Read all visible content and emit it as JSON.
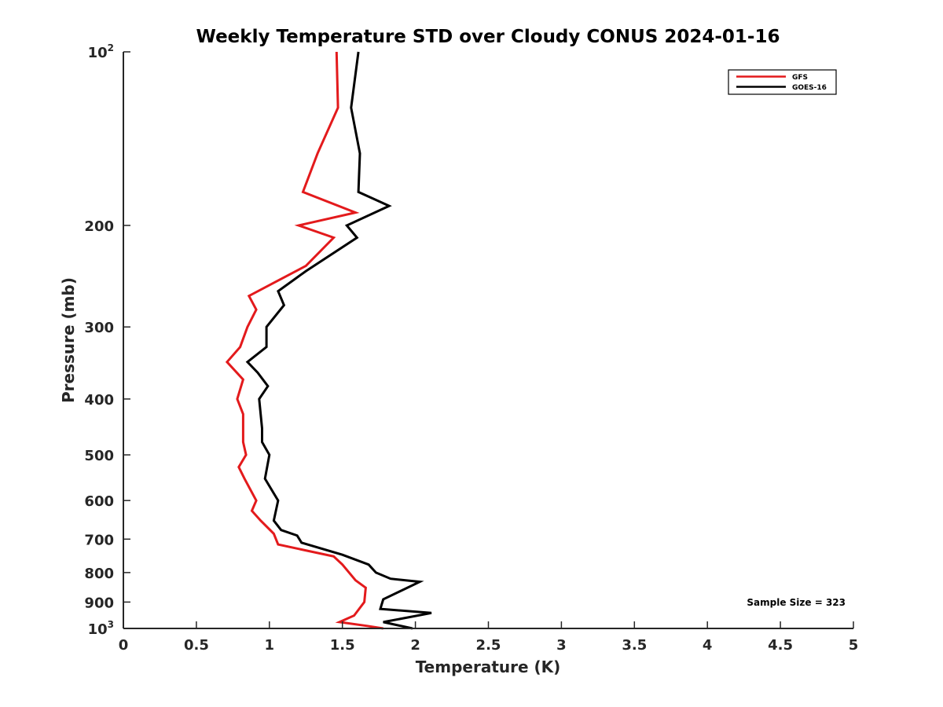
{
  "chart_data": {
    "type": "line",
    "title": "Weekly Temperature STD over Cloudy CONUS 2024-01-16",
    "xlabel": "Temperature (K)",
    "ylabel": "Pressure (mb)",
    "xlim": [
      0,
      5
    ],
    "ylim": [
      100,
      1000
    ],
    "y_scale": "log",
    "y_reversed": true,
    "x_ticks": [
      "0",
      "0.5",
      "1",
      "1.5",
      "2",
      "2.5",
      "3",
      "3.5",
      "4",
      "4.5",
      "5"
    ],
    "y_ticks": [
      {
        "value": 100,
        "base": "10",
        "exp": "2"
      },
      {
        "value": 200,
        "label": "200"
      },
      {
        "value": 300,
        "label": "300"
      },
      {
        "value": 400,
        "label": "400"
      },
      {
        "value": 500,
        "label": "500"
      },
      {
        "value": 600,
        "label": "600"
      },
      {
        "value": 700,
        "label": "700"
      },
      {
        "value": 800,
        "label": "800"
      },
      {
        "value": 900,
        "label": "900"
      },
      {
        "value": 1000,
        "base": "10",
        "exp": "3"
      }
    ],
    "grid": false,
    "legend_position": "top-right",
    "series": [
      {
        "name": "GFS",
        "color": "#e31a1c",
        "points": [
          [
            1.46,
            100
          ],
          [
            1.47,
            125
          ],
          [
            1.33,
            150
          ],
          [
            1.23,
            175
          ],
          [
            1.59,
            190
          ],
          [
            1.2,
            200
          ],
          [
            1.44,
            210
          ],
          [
            1.25,
            235
          ],
          [
            1.05,
            250
          ],
          [
            0.86,
            265
          ],
          [
            0.91,
            280
          ],
          [
            0.85,
            300
          ],
          [
            0.8,
            325
          ],
          [
            0.71,
            345
          ],
          [
            0.82,
            370
          ],
          [
            0.78,
            400
          ],
          [
            0.82,
            425
          ],
          [
            0.82,
            450
          ],
          [
            0.82,
            475
          ],
          [
            0.84,
            500
          ],
          [
            0.79,
            525
          ],
          [
            0.83,
            550
          ],
          [
            0.91,
            600
          ],
          [
            0.88,
            625
          ],
          [
            0.94,
            650
          ],
          [
            1.03,
            685
          ],
          [
            1.06,
            715
          ],
          [
            1.44,
            750
          ],
          [
            1.5,
            775
          ],
          [
            1.59,
            825
          ],
          [
            1.66,
            850
          ],
          [
            1.65,
            900
          ],
          [
            1.58,
            950
          ],
          [
            1.48,
            975
          ],
          [
            1.67,
            990
          ],
          [
            1.78,
            1000
          ]
        ]
      },
      {
        "name": "GOES-16",
        "color": "#000000",
        "points": [
          [
            1.61,
            100
          ],
          [
            1.56,
            125
          ],
          [
            1.62,
            150
          ],
          [
            1.61,
            175
          ],
          [
            1.82,
            185
          ],
          [
            1.53,
            200
          ],
          [
            1.6,
            210
          ],
          [
            1.25,
            240
          ],
          [
            1.06,
            260
          ],
          [
            1.1,
            275
          ],
          [
            0.98,
            300
          ],
          [
            0.98,
            325
          ],
          [
            0.85,
            345
          ],
          [
            0.92,
            360
          ],
          [
            0.99,
            380
          ],
          [
            0.93,
            400
          ],
          [
            0.95,
            450
          ],
          [
            0.95,
            475
          ],
          [
            1.0,
            500
          ],
          [
            0.97,
            550
          ],
          [
            1.06,
            600
          ],
          [
            1.03,
            650
          ],
          [
            1.08,
            675
          ],
          [
            1.19,
            690
          ],
          [
            1.22,
            710
          ],
          [
            1.5,
            745
          ],
          [
            1.68,
            775
          ],
          [
            1.73,
            800
          ],
          [
            1.83,
            820
          ],
          [
            2.03,
            830
          ],
          [
            1.78,
            890
          ],
          [
            1.76,
            925
          ],
          [
            2.11,
            940
          ],
          [
            1.78,
            975
          ],
          [
            1.98,
            1000
          ]
        ]
      }
    ],
    "annotations": [
      "Sample Size = 323"
    ]
  }
}
